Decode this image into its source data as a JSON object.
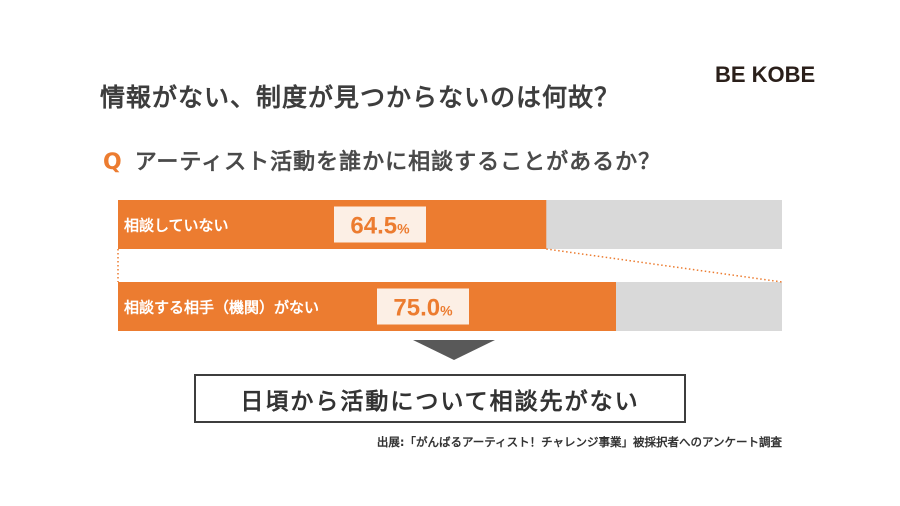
{
  "header": {
    "logo": "BE KOBE",
    "title": "情報がない、制度が見つからないのは何故？"
  },
  "question": {
    "mark": "Q",
    "text": "アーティスト活動を誰かに相談することがあるか？"
  },
  "chart_data": {
    "type": "bar",
    "orientation": "horizontal",
    "unit": "%",
    "xlim": [
      0,
      100
    ],
    "categories": [
      "相談していない",
      "相談する相手（機関）がない"
    ],
    "values": [
      64.5,
      75.0
    ],
    "value_labels": [
      "64.5",
      "75.0"
    ],
    "colors": {
      "bar": "#ec7c30",
      "track": "#d9d9d9",
      "label_box": "#fcefe5",
      "value_text": "#ec7c30",
      "connector": "#ec7c30"
    }
  },
  "conclusion": "日頃から活動について相談先がない",
  "source": "出展:「がんばるアーティスト！チャレンジ事業」被採択者へのアンケート調査"
}
